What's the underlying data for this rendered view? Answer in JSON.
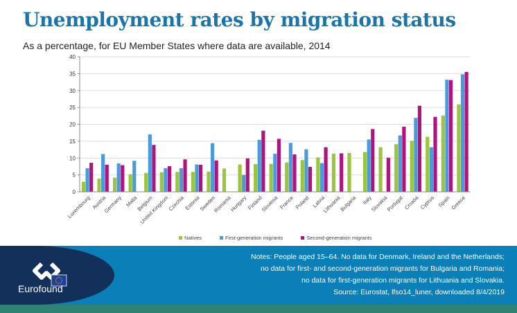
{
  "header": {
    "title": "Unemployment rates by migration status",
    "subtitle": "As a percentage, for EU Member States where data are available, 2014"
  },
  "chart_data": {
    "type": "bar",
    "title": "Unemployment rates by migration status",
    "subtitle": "As a percentage, for EU Member States where data are available, 2014",
    "xlabel": "",
    "ylabel": "",
    "ylim": [
      0,
      40
    ],
    "yticks": [
      0,
      5,
      10,
      15,
      20,
      25,
      30,
      35,
      40
    ],
    "grid": true,
    "legend_position": "bottom",
    "categories": [
      "Luxembourg",
      "Austria",
      "Germany",
      "Malta",
      "Belgium",
      "United Kingdom",
      "Czechia",
      "Estonia",
      "Sweden",
      "Romania",
      "Hungary",
      "Finland",
      "Slovenia",
      "France",
      "Poland",
      "Latvia",
      "Lithuania",
      "Bulgaria",
      "Italy",
      "Slovakia",
      "Portugal",
      "Croatia",
      "Cyprus",
      "Spain",
      "Greece"
    ],
    "series": [
      {
        "name": "Natives",
        "color": "#9bc53d",
        "values": [
          3.0,
          3.9,
          4.2,
          5.2,
          5.6,
          5.8,
          5.9,
          5.9,
          6.0,
          6.9,
          8.1,
          8.2,
          8.3,
          8.7,
          9.4,
          10.2,
          11.3,
          11.5,
          11.8,
          13.2,
          14.1,
          15.1,
          16.3,
          22.6,
          25.9
        ]
      },
      {
        "name": "First-generation migrants",
        "color": "#4a9bdc",
        "values": [
          7.0,
          11.2,
          8.4,
          9.2,
          17.0,
          7.0,
          7.0,
          8.1,
          14.4,
          null,
          5.0,
          15.4,
          11.3,
          14.5,
          12.6,
          8.5,
          null,
          null,
          15.5,
          null,
          16.7,
          21.9,
          13.2,
          33.2,
          34.8
        ]
      },
      {
        "name": "Second-generation migrants",
        "color": "#b0127e",
        "values": [
          8.6,
          8.0,
          7.9,
          null,
          13.9,
          7.6,
          9.6,
          8.0,
          9.3,
          null,
          9.9,
          18.1,
          15.7,
          11.1,
          7.4,
          13.2,
          11.4,
          null,
          18.6,
          10.1,
          19.3,
          25.5,
          22.2,
          33.1,
          35.5
        ]
      }
    ]
  },
  "legend": {
    "items": [
      {
        "label": "Natives",
        "color": "#9bc53d"
      },
      {
        "label": "First-generation migrants",
        "color": "#4a9bdc"
      },
      {
        "label": "Second-generation migrants",
        "color": "#b0127e"
      }
    ]
  },
  "footer": {
    "logo_text": "Eurofound",
    "notes": [
      "Notes: People aged 15–64. No data for Denmark, Ireland and the Netherlands;",
      "no data for first- and second-generation migrants for Bulgaria and Romania;",
      "no data for first-generation migrants for Lithuania and Slovakia.",
      "Source: Eurostat, lfso14_luner, downloaded 8/4/2019"
    ]
  }
}
